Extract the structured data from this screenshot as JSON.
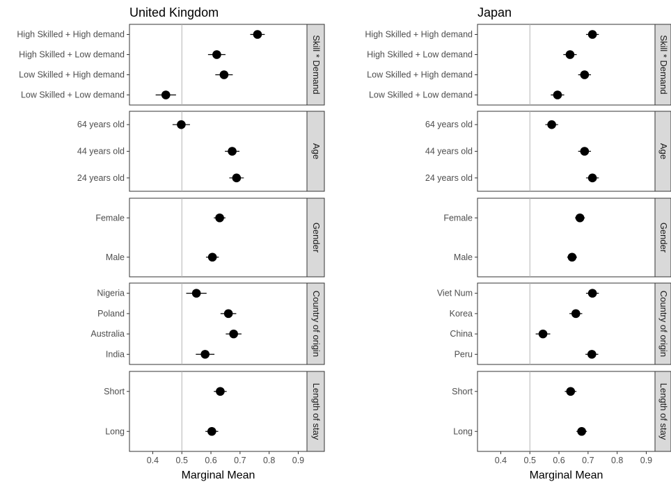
{
  "chart_data": [
    {
      "type": "scatter",
      "title": "United Kingdom",
      "xlabel": "Marginal Mean",
      "xlim": [
        0.32,
        0.93
      ],
      "xticks": [
        0.4,
        0.5,
        0.6,
        0.7,
        0.8,
        0.9
      ],
      "xtick_labels": [
        "0.4",
        "0.5",
        "0.6",
        "0.7",
        "0.8",
        "0.9"
      ],
      "reference_line": 0.5,
      "panels": [
        {
          "strip": "Skill * Demand",
          "points": [
            {
              "label": "High Skilled + High demand",
              "estimate": 0.76,
              "lower": 0.735,
              "upper": 0.785
            },
            {
              "label": "High Skilled + Low demand",
              "estimate": 0.62,
              "lower": 0.59,
              "upper": 0.65
            },
            {
              "label": "Low Skilled + High demand",
              "estimate": 0.645,
              "lower": 0.615,
              "upper": 0.675
            },
            {
              "label": "Low Skilled + Low demand",
              "estimate": 0.445,
              "lower": 0.41,
              "upper": 0.48
            }
          ]
        },
        {
          "strip": "Age",
          "points": [
            {
              "label": "64 years old",
              "estimate": 0.498,
              "lower": 0.468,
              "upper": 0.528
            },
            {
              "label": "44 years old",
              "estimate": 0.673,
              "lower": 0.648,
              "upper": 0.698
            },
            {
              "label": "24 years old",
              "estimate": 0.688,
              "lower": 0.663,
              "upper": 0.713
            }
          ]
        },
        {
          "strip": "Gender",
          "points": [
            {
              "label": "Female",
              "estimate": 0.63,
              "lower": 0.61,
              "upper": 0.65
            },
            {
              "label": "Male",
              "estimate": 0.605,
              "lower": 0.583,
              "upper": 0.627
            }
          ]
        },
        {
          "strip": "Country of origin",
          "points": [
            {
              "label": "Nigeria",
              "estimate": 0.55,
              "lower": 0.515,
              "upper": 0.585
            },
            {
              "label": "Poland",
              "estimate": 0.66,
              "lower": 0.633,
              "upper": 0.687
            },
            {
              "label": "Australia",
              "estimate": 0.678,
              "lower": 0.651,
              "upper": 0.705
            },
            {
              "label": "India",
              "estimate": 0.58,
              "lower": 0.548,
              "upper": 0.612
            }
          ]
        },
        {
          "strip": "Length of stay",
          "points": [
            {
              "label": "Short",
              "estimate": 0.632,
              "lower": 0.61,
              "upper": 0.654
            },
            {
              "label": "Long",
              "estimate": 0.603,
              "lower": 0.581,
              "upper": 0.625
            }
          ]
        }
      ]
    },
    {
      "type": "scatter",
      "title": "Japan",
      "xlabel": "Marginal Mean",
      "xlim": [
        0.32,
        0.93
      ],
      "xticks": [
        0.4,
        0.5,
        0.6,
        0.7,
        0.8,
        0.9
      ],
      "xtick_labels": [
        "0.4",
        "0.5",
        "0.6",
        "0.7",
        "0.8",
        "0.9"
      ],
      "reference_line": 0.5,
      "panels": [
        {
          "strip": "Skill * Demand",
          "points": [
            {
              "label": "High Skilled + High demand",
              "estimate": 0.715,
              "lower": 0.693,
              "upper": 0.737
            },
            {
              "label": "High Skilled + Low demand",
              "estimate": 0.638,
              "lower": 0.615,
              "upper": 0.661
            },
            {
              "label": "Low Skilled + High demand",
              "estimate": 0.688,
              "lower": 0.666,
              "upper": 0.71
            },
            {
              "label": "Low Skilled + Low demand",
              "estimate": 0.595,
              "lower": 0.572,
              "upper": 0.618
            }
          ]
        },
        {
          "strip": "Age",
          "points": [
            {
              "label": "64 years old",
              "estimate": 0.575,
              "lower": 0.553,
              "upper": 0.597
            },
            {
              "label": "44 years old",
              "estimate": 0.688,
              "lower": 0.666,
              "upper": 0.71
            },
            {
              "label": "24 years old",
              "estimate": 0.715,
              "lower": 0.693,
              "upper": 0.737
            }
          ]
        },
        {
          "strip": "Gender",
          "points": [
            {
              "label": "Female",
              "estimate": 0.672,
              "lower": 0.655,
              "upper": 0.689
            },
            {
              "label": "Male",
              "estimate": 0.645,
              "lower": 0.628,
              "upper": 0.662
            }
          ]
        },
        {
          "strip": "Country of origin",
          "points": [
            {
              "label": "Viet Num",
              "estimate": 0.715,
              "lower": 0.693,
              "upper": 0.737
            },
            {
              "label": "Korea",
              "estimate": 0.658,
              "lower": 0.636,
              "upper": 0.68
            },
            {
              "label": "China",
              "estimate": 0.545,
              "lower": 0.52,
              "upper": 0.57
            },
            {
              "label": "Peru",
              "estimate": 0.713,
              "lower": 0.691,
              "upper": 0.735
            }
          ]
        },
        {
          "strip": "Length of stay",
          "points": [
            {
              "label": "Short",
              "estimate": 0.64,
              "lower": 0.62,
              "upper": 0.66
            },
            {
              "label": "Long",
              "estimate": 0.678,
              "lower": 0.66,
              "upper": 0.696
            }
          ]
        }
      ]
    }
  ],
  "colors": {
    "point": "#000000",
    "reference_line": "#b3b3b3",
    "strip_fill": "#d9d9d9",
    "panel_border": "#333333",
    "tick_label": "#4d4d4d"
  }
}
